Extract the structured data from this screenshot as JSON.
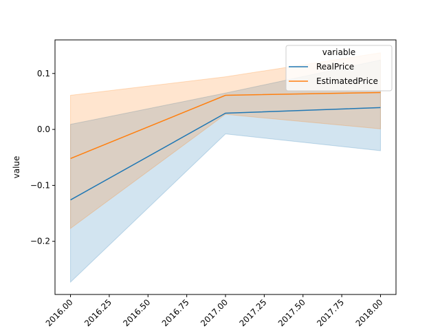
{
  "chart_data": {
    "type": "line",
    "xlabel": "",
    "ylabel": "value",
    "xlim": [
      2015.9,
      2018.1
    ],
    "ylim": [
      -0.295,
      0.16
    ],
    "x_ticks": [
      2016.0,
      2016.25,
      2016.5,
      2016.75,
      2017.0,
      2017.25,
      2017.5,
      2017.75,
      2018.0
    ],
    "x_tick_labels": [
      "2016.00",
      "2016.25",
      "2016.50",
      "2016.75",
      "2017.00",
      "2017.25",
      "2017.50",
      "2017.75",
      "2018.00"
    ],
    "y_ticks": [
      -0.2,
      -0.1,
      0.0,
      0.1
    ],
    "y_tick_labels": [
      "−0.2",
      "−0.1",
      "0.0",
      "0.1"
    ],
    "grid": false,
    "legend": {
      "title": "variable",
      "position": "top-right"
    },
    "x": [
      2016.0,
      2017.0,
      2018.0
    ],
    "series": [
      {
        "name": "RealPrice",
        "color": "#1f77b4",
        "values": [
          -0.126,
          0.029,
          0.039
        ],
        "ci_lower": [
          -0.273,
          -0.008,
          -0.038
        ],
        "ci_upper": [
          0.009,
          0.065,
          0.124
        ]
      },
      {
        "name": "EstimatedPrice",
        "color": "#ff7f0e",
        "values": [
          -0.052,
          0.061,
          0.066
        ],
        "ci_lower": [
          -0.177,
          0.027,
          0.001
        ],
        "ci_upper": [
          0.061,
          0.094,
          0.137
        ]
      }
    ]
  }
}
